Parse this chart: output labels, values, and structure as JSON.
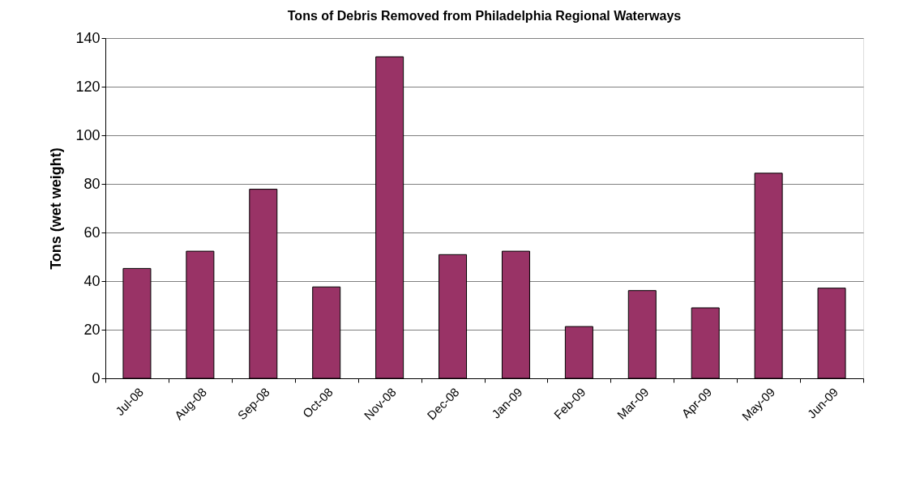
{
  "chart_data": {
    "type": "bar",
    "title": "Tons of Debris Removed from Philadelphia Regional Waterways",
    "ylabel": "Tons (wet weight)",
    "categories": [
      "Jul-08",
      "Aug-08",
      "Sep-08",
      "Oct-08",
      "Nov-08",
      "Dec-08",
      "Jan-09",
      "Feb-09",
      "Mar-09",
      "Apr-09",
      "May-09",
      "Jun-09"
    ],
    "values": [
      45.2,
      52.3,
      77.8,
      37.6,
      132.3,
      50.9,
      52.3,
      21.3,
      36.1,
      29,
      84.4,
      37.1
    ],
    "color": "#993366",
    "ylim": [
      0,
      140
    ],
    "yticks": [
      0,
      20,
      40,
      60,
      80,
      100,
      120,
      140
    ],
    "grid": "y"
  }
}
